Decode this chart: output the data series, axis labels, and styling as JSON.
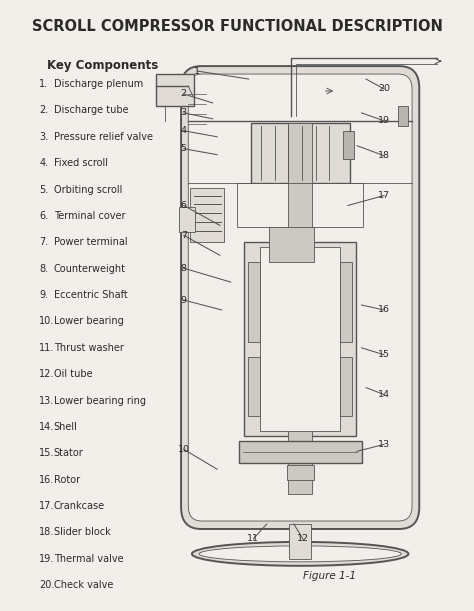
{
  "title": "SCROLL COMPRESSOR FUNCTIONAL DESCRIPTION",
  "title_fontsize": 10.5,
  "bg_color": "#f2efea",
  "text_color": "#2a2a2a",
  "key_components_label": "Key Components",
  "components": [
    "Discharge plenum",
    "Discharge tube",
    "Pressure relief valve",
    "Fixed scroll",
    "Orbiting scroll",
    "Terminal cover",
    "Power terminal",
    "Counterweight",
    "Eccentric Shaft",
    "Lower bearing",
    "Thrust washer",
    "Oil tube",
    "Lower bearing ring",
    "Shell",
    "Stator",
    "Rotor",
    "Crankcase",
    "Slider block",
    "Thermal valve",
    "Check valve"
  ],
  "figure_label": "Figure 1-1",
  "line_color": "#555555",
  "fill_light": "#e0dbd4",
  "fill_mid": "#ccc8c2",
  "fill_dark": "#b8b4ae"
}
